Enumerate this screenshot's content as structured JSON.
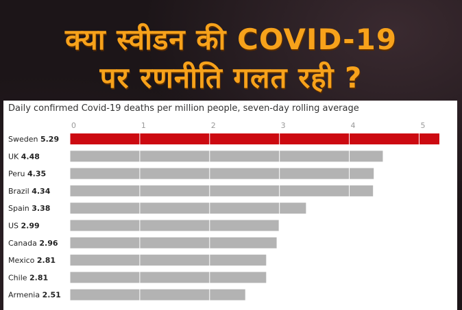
{
  "headline": {
    "line1": "क्या स्वीडन की COVID-19",
    "line2": "पर रणनीति गलत रही ?"
  },
  "chart_data": {
    "type": "bar",
    "orientation": "horizontal",
    "title": "Daily confirmed Covid-19 deaths per million people, seven-day rolling average",
    "categories": [
      "Sweden",
      "UK",
      "Peru",
      "Brazil",
      "Spain",
      "US",
      "Canada",
      "Mexico",
      "Chile",
      "Armenia"
    ],
    "values": [
      5.29,
      4.48,
      4.35,
      4.34,
      3.38,
      2.99,
      2.96,
      2.81,
      2.81,
      2.51
    ],
    "value_labels": [
      "5.29",
      "4.48",
      "4.35",
      "4.34",
      "3.38",
      "2.99",
      "2.96",
      "2.81",
      "2.81",
      "2.51"
    ],
    "xticks": [
      0,
      1,
      2,
      3,
      4,
      5
    ],
    "xtick_labels": [
      "0",
      "1",
      "2",
      "3",
      "4",
      "5"
    ],
    "xlim": [
      0,
      5.29
    ],
    "grid": true,
    "highlight_category": "Sweden",
    "colors": {
      "highlight": "#cc0a11",
      "default": "#b3b3b3",
      "grid": "#ffffff"
    }
  }
}
